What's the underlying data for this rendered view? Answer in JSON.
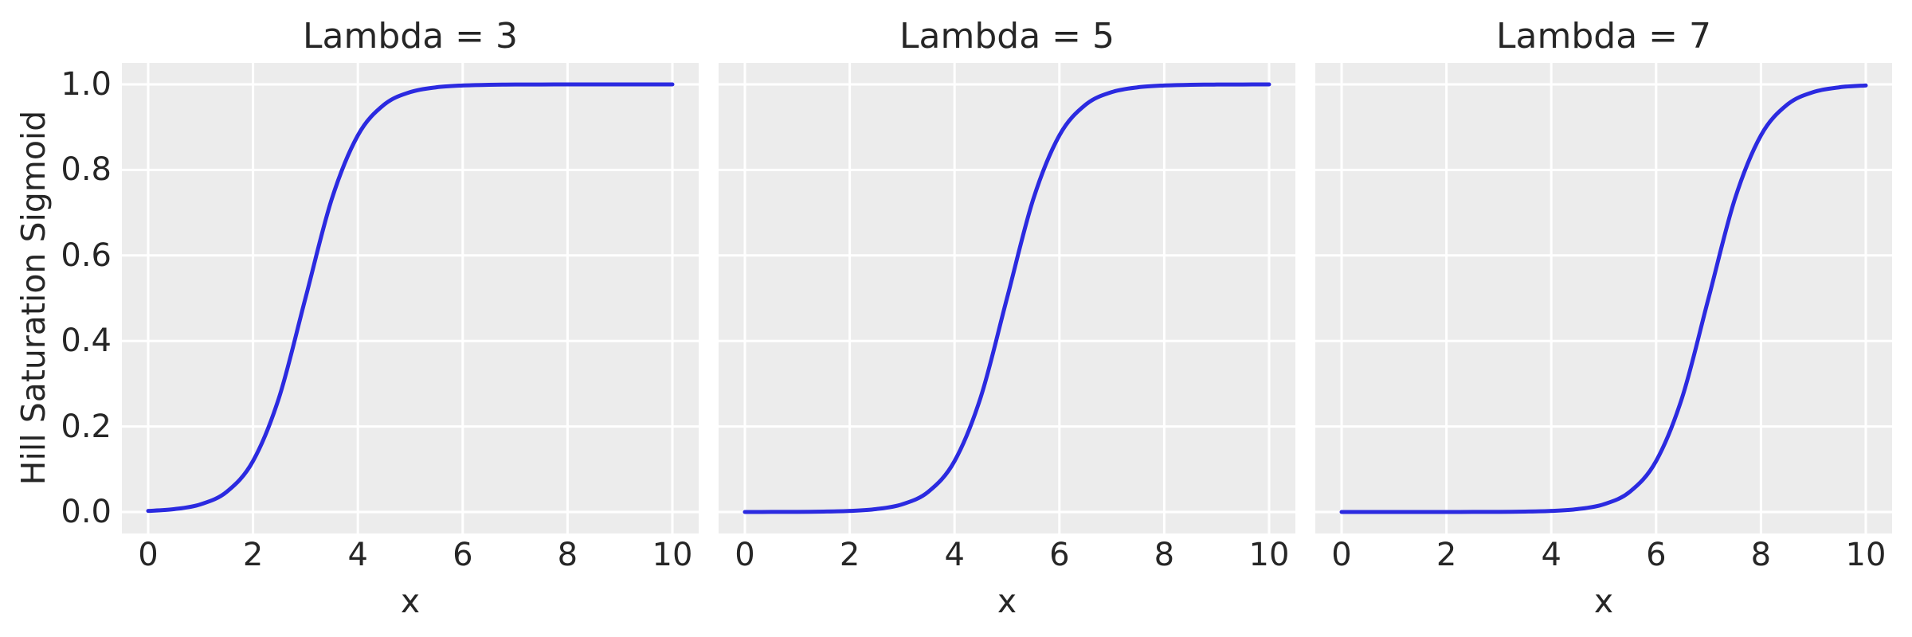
{
  "figure": {
    "ylabel": "Hill Saturation Sigmoid",
    "xlabel": "x",
    "background_color": "#ffffff",
    "axes_background_color": "#ececec",
    "grid_color": "#ffffff",
    "line_color": "#2b2ae0",
    "text_color": "#262626"
  },
  "chart_data": {
    "type": "line",
    "title": "",
    "xlabel": "x",
    "ylabel": "Hill Saturation Sigmoid",
    "grid": true,
    "legend": null,
    "xlim": [
      -0.5,
      10.5
    ],
    "ylim": [
      -0.05,
      1.05
    ],
    "x_ticks": [
      0,
      2,
      4,
      6,
      8,
      10
    ],
    "y_ticks": [
      0.0,
      0.2,
      0.4,
      0.6,
      0.8,
      1.0
    ],
    "x_tick_labels": [
      "0",
      "2",
      "4",
      "6",
      "8",
      "10"
    ],
    "y_tick_labels": [
      "0.0",
      "0.2",
      "0.4",
      "0.6",
      "0.8",
      "1.0"
    ],
    "x": [
      0,
      0.5,
      1,
      1.5,
      2,
      2.5,
      3,
      3.5,
      4,
      4.5,
      5,
      5.5,
      6,
      6.5,
      7,
      7.5,
      8,
      8.5,
      9,
      9.5,
      10
    ],
    "series": [
      {
        "name": "Lambda = 3",
        "lambda": 3,
        "values": [
          0.002473,
          0.006693,
          0.017986,
          0.047426,
          0.119203,
          0.268941,
          0.5,
          0.731059,
          0.880797,
          0.952574,
          0.982014,
          0.993307,
          0.997527,
          0.999089,
          0.999665,
          0.999877,
          0.999955,
          0.999983,
          0.999994,
          0.999998,
          0.999999
        ]
      },
      {
        "name": "Lambda = 5",
        "lambda": 5,
        "values": [
          4.5e-05,
          0.000123,
          0.000335,
          0.000911,
          0.002473,
          0.006693,
          0.017986,
          0.047426,
          0.119203,
          0.268941,
          0.5,
          0.731059,
          0.880797,
          0.952574,
          0.982014,
          0.993307,
          0.997527,
          0.999089,
          0.999665,
          0.999877,
          0.999955
        ]
      },
      {
        "name": "Lambda = 7",
        "lambda": 7,
        "values": [
          1e-06,
          2e-06,
          6e-06,
          1.7e-05,
          4.5e-05,
          0.000123,
          0.000335,
          0.000911,
          0.002473,
          0.006693,
          0.017986,
          0.047426,
          0.119203,
          0.268941,
          0.5,
          0.731059,
          0.880797,
          0.952574,
          0.982014,
          0.993307,
          0.997527
        ]
      }
    ]
  }
}
